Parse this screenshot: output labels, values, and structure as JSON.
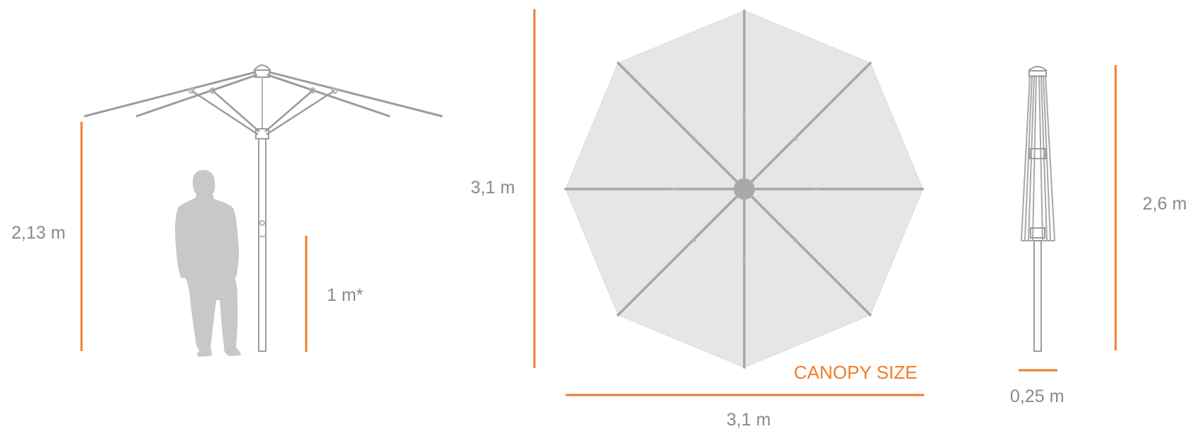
{
  "colors": {
    "accent": "#f07d2a",
    "canopy_fill": "#e6e6e7",
    "frame_stroke": "#9c9c9c",
    "silhouette": "#c8c8c9",
    "label": "#8a8a8a"
  },
  "icons": {
    "open_umbrella": "open-umbrella-side-view",
    "person": "person-silhouette",
    "canopy_top": "octagonal-canopy-top-view",
    "closed_umbrella": "closed-umbrella-side-view"
  },
  "labels": {
    "open_height": "2,13 m",
    "pole_reach": "1 m*",
    "canopy_height": "3,1 m",
    "canopy_width": "3,1 m",
    "canopy_size": "CANOPY SIZE",
    "closed_height": "2,6 m",
    "closed_diameter": "0,25 m"
  }
}
